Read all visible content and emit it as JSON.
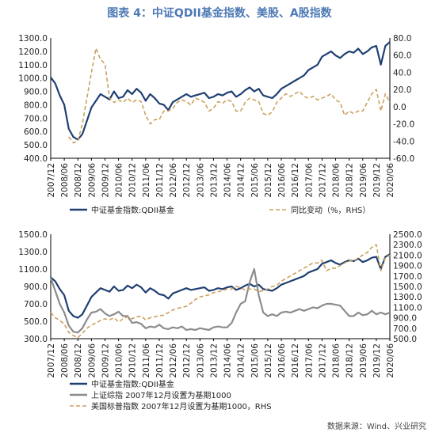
{
  "title": "图表 4：中证QDII基金指数、美股、A股指数",
  "source": "数据来源：Wind、兴业研究",
  "colors": {
    "navy": "#1f3f73",
    "gold": "#c9a25f",
    "gray": "#8c8c8c"
  },
  "chart_data": [
    {
      "type": "line",
      "x_ticks": [
        "2007/12",
        "2008/06",
        "2008/12",
        "2009/06",
        "2009/12",
        "2010/06",
        "2010/12",
        "2011/06",
        "2011/12",
        "2012/06",
        "2012/12",
        "2013/06",
        "2013/12",
        "2014/06",
        "2014/12",
        "2015/06",
        "2015/12",
        "2016/06",
        "2016/12",
        "2017/06",
        "2017/12",
        "2018/06",
        "2018/12",
        "2019/06",
        "2019/12",
        "2020/06"
      ],
      "left_axis": {
        "ylim": [
          400,
          1300
        ],
        "ticks": [
          "400.0",
          "500.0",
          "600.0",
          "700.0",
          "800.0",
          "900.0",
          "1000.0",
          "1100.0",
          "1200.0",
          "1300.0"
        ]
      },
      "right_axis": {
        "ylim": [
          -60,
          80
        ],
        "ticks": [
          "-60.0",
          "-40.0",
          "-20.0",
          "0.0",
          "20.0",
          "40.0",
          "60.0",
          "80.0"
        ]
      },
      "series": [
        {
          "name": "中证基金指数:QDII基金",
          "axis": "left",
          "style": "solid",
          "color": "navy",
          "values": [
            1005,
            960,
            870,
            800,
            620,
            560,
            540,
            580,
            680,
            780,
            830,
            880,
            860,
            840,
            900,
            850,
            860,
            910,
            880,
            920,
            890,
            830,
            880,
            850,
            810,
            800,
            760,
            820,
            840,
            860,
            880,
            860,
            870,
            880,
            890,
            850,
            860,
            880,
            870,
            890,
            900,
            860,
            880,
            910,
            930,
            900,
            920,
            870,
            860,
            850,
            880,
            920,
            940,
            960,
            980,
            1000,
            1020,
            1060,
            1080,
            1100,
            1160,
            1180,
            1200,
            1170,
            1150,
            1180,
            1200,
            1190,
            1220,
            1180,
            1200,
            1230,
            1240,
            1100,
            1240,
            1270
          ]
        },
        {
          "name": "同比变动（%，RHS）",
          "axis": "right",
          "style": "dashed",
          "color": "gold",
          "values": [
            null,
            null,
            null,
            null,
            -35,
            -42,
            -40,
            -20,
            10,
            40,
            68,
            55,
            50,
            10,
            5,
            8,
            5,
            10,
            5,
            8,
            6,
            -10,
            -20,
            -15,
            -15,
            -5,
            -5,
            -2,
            5,
            8,
            6,
            2,
            10,
            8,
            5,
            -5,
            -2,
            6,
            4,
            8,
            6,
            -5,
            -5,
            5,
            10,
            8,
            6,
            -8,
            -10,
            -6,
            5,
            10,
            15,
            12,
            15,
            18,
            12,
            10,
            12,
            8,
            10,
            12,
            15,
            8,
            5,
            -10,
            -5,
            -8,
            -5,
            -5,
            5,
            15,
            20,
            -5,
            15,
            5
          ]
        }
      ]
    },
    {
      "type": "line",
      "x_ticks": [
        "2007/12",
        "2008/06",
        "2008/12",
        "2009/06",
        "2009/12",
        "2010/06",
        "2010/12",
        "2011/06",
        "2011/12",
        "2012/06",
        "2012/12",
        "2013/06",
        "2013/12",
        "2014/06",
        "2014/12",
        "2015/06",
        "2015/12",
        "2016/06",
        "2016/12",
        "2017/06",
        "2017/12",
        "2018/06",
        "2018/12",
        "2019/06",
        "2019/12",
        "2020/06"
      ],
      "left_axis": {
        "ylim": [
          300,
          1500
        ],
        "ticks": [
          "300.0",
          "500.0",
          "700.0",
          "900.0",
          "1100.0",
          "1300.0",
          "1500.0"
        ]
      },
      "right_axis": {
        "ylim": [
          500,
          2500
        ],
        "ticks": [
          "500.0",
          "700.0",
          "900.0",
          "1100.0",
          "1300.0",
          "1500.0",
          "1700.0",
          "1900.0",
          "2100.0",
          "2300.0",
          "2500.0"
        ]
      },
      "series": [
        {
          "name": "中证基金指数:QDII基金",
          "axis": "left",
          "style": "solid",
          "color": "navy",
          "values": [
            1005,
            960,
            870,
            800,
            620,
            560,
            540,
            580,
            680,
            780,
            830,
            880,
            860,
            840,
            900,
            850,
            860,
            910,
            880,
            920,
            890,
            830,
            880,
            850,
            810,
            800,
            760,
            820,
            840,
            860,
            880,
            860,
            870,
            880,
            890,
            850,
            860,
            880,
            870,
            890,
            900,
            860,
            880,
            910,
            930,
            900,
            920,
            870,
            860,
            850,
            880,
            920,
            940,
            960,
            980,
            1000,
            1020,
            1060,
            1080,
            1100,
            1160,
            1180,
            1200,
            1170,
            1150,
            1180,
            1200,
            1190,
            1220,
            1180,
            1200,
            1230,
            1240,
            1100,
            1240,
            1270
          ]
        },
        {
          "name": "上证综指 2007年12月设置为基期1000",
          "axis": "left",
          "style": "solid",
          "color": "gray",
          "values": [
            1000,
            850,
            700,
            600,
            450,
            380,
            370,
            420,
            520,
            600,
            610,
            640,
            590,
            560,
            580,
            610,
            560,
            560,
            480,
            490,
            470,
            420,
            440,
            430,
            460,
            420,
            410,
            430,
            420,
            440,
            400,
            410,
            400,
            420,
            410,
            400,
            430,
            440,
            430,
            430,
            480,
            600,
            700,
            730,
            950,
            1100,
            800,
            600,
            560,
            580,
            560,
            600,
            610,
            600,
            620,
            640,
            620,
            640,
            660,
            650,
            680,
            700,
            700,
            690,
            680,
            620,
            560,
            560,
            600,
            570,
            580,
            620,
            580,
            600,
            580,
            600
          ]
        },
        {
          "name": "美国标普指数 2007年12月设置为基期1000，RHS",
          "axis": "right",
          "style": "dashed",
          "color": "gold",
          "values": [
            1000,
            900,
            850,
            780,
            620,
            560,
            520,
            600,
            700,
            760,
            800,
            850,
            880,
            860,
            900,
            820,
            880,
            920,
            880,
            920,
            930,
            860,
            900,
            920,
            940,
            950,
            1000,
            1050,
            1080,
            1100,
            1120,
            1180,
            1250,
            1300,
            1320,
            1340,
            1380,
            1400,
            1420,
            1450,
            1450,
            1500,
            1480,
            1430,
            1450,
            1450,
            1400,
            1420,
            1450,
            1500,
            1520,
            1600,
            1650,
            1700,
            1750,
            1800,
            1850,
            1900,
            1950,
            1950,
            2000,
            1800,
            1850,
            1850,
            1900,
            1950,
            2000,
            1980,
            2050,
            2100,
            2150,
            2250,
            2300,
            1800,
            2050,
            2100
          ]
        }
      ]
    }
  ],
  "legend": {
    "chart1": [
      "中证基金指数:QDII基金",
      "同比变动（%，RHS）"
    ],
    "chart2": [
      "中证基金指数:QDII基金",
      "上证综指 2007年12月设置为基期1000",
      "美国标普指数 2007年12月设置为基期1000，RHS"
    ]
  }
}
